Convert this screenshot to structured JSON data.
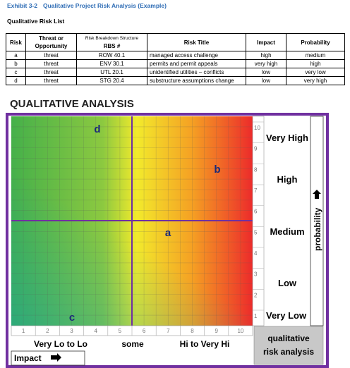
{
  "header": {
    "exhibit": "Exhibit 3-2",
    "title": "Qualitative Project Risk Analysis (Example)"
  },
  "list_title": "Qualitative Risk List",
  "table": {
    "columns": [
      "Risk",
      "Threat or Opportunity",
      "Risk Breakdown Structure",
      "Risk Title",
      "Impact",
      "Probability"
    ],
    "rbs_subheader": "RBS #",
    "rows": [
      [
        "a",
        "threat",
        "ROW 40.1",
        "managed access challenge",
        "high",
        "medium"
      ],
      [
        "b",
        "threat",
        "ENV 30.1",
        "permits and permit appeals",
        "very high",
        "high"
      ],
      [
        "c",
        "threat",
        "UTL 20.1",
        "unidentified utilities – conflicts",
        "low",
        "very low"
      ],
      [
        "d",
        "threat",
        "STG 20.4",
        "substructure assumptions change",
        "low",
        "very high"
      ]
    ]
  },
  "analysis": {
    "title": "QUALITATIVE ANALYSIS",
    "points": [
      "d",
      "b",
      "a",
      "c"
    ],
    "probability_scale": [
      10,
      9,
      8,
      7,
      6,
      5,
      4,
      3,
      2,
      1
    ],
    "probability_levels": [
      "Very High",
      "High",
      "Medium",
      "Low",
      "Very Low"
    ],
    "probability_label": "probability",
    "impact_scale": [
      1,
      2,
      3,
      4,
      5,
      6,
      7,
      8,
      9,
      10
    ],
    "impact_levels": [
      "Very Lo to Lo",
      "some",
      "Hi to Very Hi"
    ],
    "impact_label": "Impact",
    "legend": "qualitative risk analysis"
  }
}
